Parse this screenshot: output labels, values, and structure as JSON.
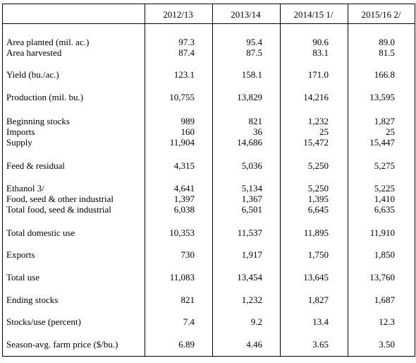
{
  "columns": [
    "2012/13",
    "2013/14",
    "2014/15 1/",
    "2015/16 2/"
  ],
  "groups": [
    {
      "rows": [
        {
          "label": "Area planted (mil. ac.)",
          "values": [
            "97.3",
            "95.4",
            "90.6",
            "89.0"
          ]
        },
        {
          "label": "Area harvested",
          "values": [
            "87.4",
            "87.5",
            "83.1",
            "81.5"
          ]
        }
      ]
    },
    {
      "rows": [
        {
          "label": "Yield (bu./ac.)",
          "values": [
            "123.1",
            "158.1",
            "171.0",
            "166.8"
          ]
        }
      ]
    },
    {
      "rows": [
        {
          "label": "Production (mil. bu.)",
          "values": [
            "10,755",
            "13,829",
            "14,216",
            "13,595"
          ]
        }
      ]
    },
    {
      "rows": [
        {
          "label": "Beginning stocks",
          "values": [
            "989",
            "821",
            "1,232",
            "1,827"
          ]
        },
        {
          "label": "Imports",
          "values": [
            "160",
            "36",
            "25",
            "25"
          ]
        },
        {
          "label": "Supply",
          "values": [
            "11,904",
            "14,686",
            "15,472",
            "15,447"
          ]
        }
      ]
    },
    {
      "rows": [
        {
          "label": "Feed & residual",
          "values": [
            "4,315",
            "5,036",
            "5,250",
            "5,275"
          ]
        }
      ]
    },
    {
      "rows": [
        {
          "label": "Ethanol 3/",
          "values": [
            "4,641",
            "5,134",
            "5,250",
            "5,225"
          ]
        },
        {
          "label": "Food, seed & other industrial",
          "values": [
            "1,397",
            "1,367",
            "1,395",
            "1,410"
          ]
        },
        {
          "label": "Total food, seed & industrial",
          "values": [
            "6,038",
            "6,501",
            "6,645",
            "6,635"
          ]
        }
      ]
    },
    {
      "rows": [
        {
          "label": "Total domestic use",
          "values": [
            "10,353",
            "11,537",
            "11,895",
            "11,910"
          ]
        }
      ]
    },
    {
      "rows": [
        {
          "label": "Exports",
          "values": [
            "730",
            "1,917",
            "1,750",
            "1,850"
          ]
        }
      ]
    },
    {
      "rows": [
        {
          "label": "Total use",
          "values": [
            "11,083",
            "13,454",
            "13,645",
            "13,760"
          ]
        }
      ]
    },
    {
      "rows": [
        {
          "label": "Ending stocks",
          "values": [
            "821",
            "1,232",
            "1,827",
            "1,687"
          ]
        }
      ]
    },
    {
      "rows": [
        {
          "label": "Stocks/use (percent)",
          "values": [
            "7.4",
            "9.2",
            "13.4",
            "12.3"
          ]
        }
      ]
    },
    {
      "rows": [
        {
          "label": "Season-avg. farm price ($/bu.)",
          "values": [
            "6.89",
            "4.46",
            "3.65",
            "3.50"
          ]
        }
      ]
    }
  ]
}
